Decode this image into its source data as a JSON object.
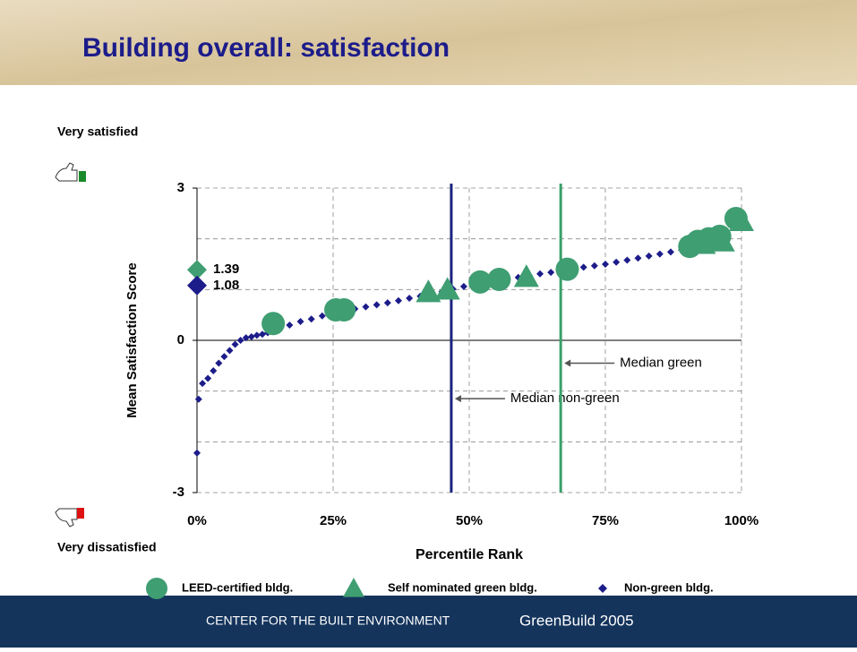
{
  "chart_data": {
    "type": "scatter",
    "title": "Building overall: satisfaction",
    "ylabel": "Mean Satisfaction Score",
    "xlabel": "Percentile Rank",
    "ylabel_top": "Very satisfied",
    "ylabel_bottom": "Very dissatisfied",
    "xlim": [
      0,
      100
    ],
    "ylim": [
      -3,
      3
    ],
    "xticks": [
      {
        "value": 0,
        "label": "0%"
      },
      {
        "value": 25,
        "label": "25%"
      },
      {
        "value": 50,
        "label": "50%"
      },
      {
        "value": 75,
        "label": "75%"
      },
      {
        "value": 100,
        "label": "100%"
      }
    ],
    "yticks": [
      -3,
      0,
      3
    ],
    "ygrid": [
      -3,
      -2,
      -1,
      0,
      1,
      2,
      3
    ],
    "grid": true,
    "series": [
      {
        "name": "LEED-certified bldg.",
        "marker": "circle",
        "color": "#3f9e72",
        "x": [
          14,
          25.5,
          27,
          52,
          55.5,
          68,
          90.5,
          92,
          94,
          96,
          99
        ],
        "values": [
          0.33,
          0.6,
          0.6,
          1.15,
          1.2,
          1.4,
          1.85,
          1.95,
          2.0,
          2.05,
          2.4
        ]
      },
      {
        "name": "Self nominated green bldg.",
        "marker": "triangle",
        "color": "#3f9e72",
        "x": [
          42.5,
          46,
          60.5,
          93,
          96.5,
          100
        ],
        "values": [
          0.95,
          1.0,
          1.25,
          1.9,
          1.95,
          2.35
        ]
      },
      {
        "name": "Non-green bldg.",
        "marker": "diamond",
        "color": "#1c1c8a",
        "x": [
          0,
          0.3,
          1,
          2,
          3,
          4,
          5,
          6,
          7,
          8,
          9,
          10,
          11,
          12,
          13,
          15,
          17,
          19,
          21,
          23,
          25,
          27,
          29,
          31,
          33,
          35,
          37,
          39,
          41,
          43,
          45,
          47,
          49,
          51,
          53,
          55,
          57,
          59,
          61,
          63,
          65,
          67,
          69,
          71,
          73,
          75,
          77,
          79,
          81,
          83,
          85,
          87,
          89,
          91,
          93,
          95,
          97,
          99,
          100
        ],
        "values": [
          -2.22,
          -1.16,
          -0.85,
          -0.75,
          -0.6,
          -0.45,
          -0.32,
          -0.2,
          -0.08,
          0.0,
          0.05,
          0.07,
          0.1,
          0.12,
          0.15,
          0.22,
          0.3,
          0.37,
          0.42,
          0.48,
          0.53,
          0.58,
          0.62,
          0.66,
          0.7,
          0.74,
          0.78,
          0.83,
          0.87,
          0.91,
          0.96,
          1.01,
          1.06,
          1.1,
          1.13,
          1.16,
          1.2,
          1.24,
          1.28,
          1.31,
          1.34,
          1.37,
          1.4,
          1.44,
          1.47,
          1.5,
          1.54,
          1.58,
          1.62,
          1.66,
          1.7,
          1.74,
          1.78,
          1.85,
          1.92,
          2.0,
          2.1,
          2.3,
          2.4
        ]
      }
    ],
    "medians": [
      {
        "x": 46.7,
        "label": "Median non-green",
        "color": "#1a237e",
        "label_y": -1.15
      },
      {
        "x": 66.8,
        "label": "Median green",
        "color": "#3aa06a",
        "label_y": -0.45
      }
    ],
    "means": [
      {
        "value": 1.39,
        "color": "#3f9e72"
      },
      {
        "value": 1.08,
        "color": "#1c1c8a"
      }
    ]
  },
  "footer": {
    "org": "CENTER FOR THE BUILT ENVIRONMENT",
    "event": "GreenBuild 2005"
  }
}
